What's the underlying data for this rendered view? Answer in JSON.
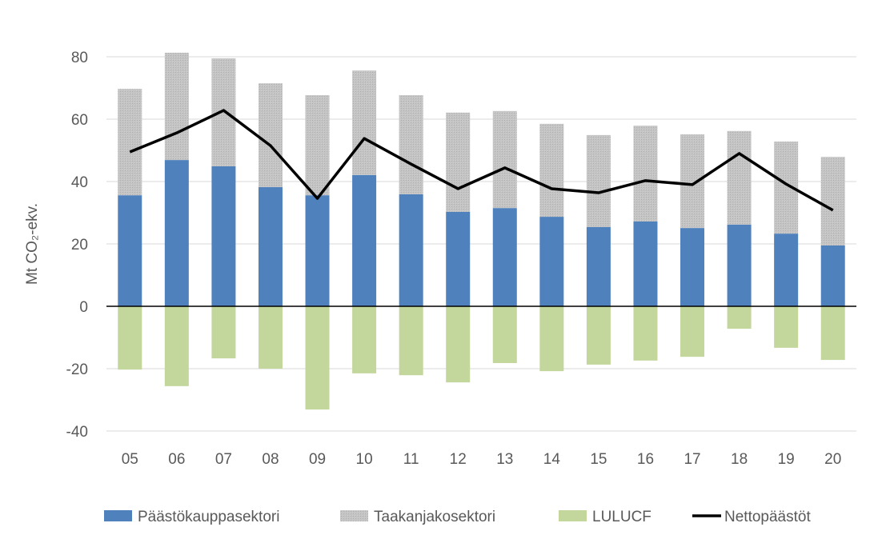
{
  "chart_data": {
    "type": "bar",
    "stacked": true,
    "title": "",
    "xlabel": "",
    "ylabel": "Mt CO₂-ekv.",
    "ylim": [
      -40,
      80
    ],
    "yticks": [
      -40,
      -20,
      0,
      20,
      40,
      60,
      80
    ],
    "grid": true,
    "legend_position": "bottom",
    "categories": [
      "05",
      "06",
      "07",
      "08",
      "09",
      "10",
      "11",
      "12",
      "13",
      "14",
      "15",
      "16",
      "17",
      "18",
      "19",
      "20"
    ],
    "series": [
      {
        "name": "Päästökauppasektori",
        "type": "bar",
        "color": "#4f81bd",
        "values": [
          35.6,
          46.9,
          44.9,
          38.2,
          35.6,
          42.1,
          35.9,
          30.3,
          31.5,
          28.7,
          25.4,
          27.2,
          25.1,
          26.2,
          23.3,
          19.5
        ]
      },
      {
        "name": "Taakanjakosektori",
        "type": "bar",
        "color": "#bfbfbf",
        "values": [
          34.1,
          34.4,
          34.6,
          33.3,
          32.1,
          33.5,
          31.8,
          31.8,
          31.1,
          29.8,
          29.5,
          30.7,
          30.0,
          30.0,
          29.5,
          28.4
        ]
      },
      {
        "name": "LULUCF",
        "type": "bar",
        "color": "#c3d69b",
        "values": [
          -20.3,
          -25.6,
          -16.7,
          -20.0,
          -33.1,
          -21.5,
          -22.1,
          -24.4,
          -18.2,
          -20.8,
          -18.7,
          -17.4,
          -16.2,
          -7.2,
          -13.3,
          -17.2
        ]
      },
      {
        "name": "Nettopäästöt",
        "type": "line",
        "color": "#000000",
        "values": [
          49.5,
          55.6,
          62.8,
          51.5,
          34.6,
          53.8,
          45.6,
          37.7,
          44.4,
          37.7,
          36.4,
          40.3,
          39.0,
          49.0,
          39.2,
          30.8
        ]
      }
    ]
  }
}
